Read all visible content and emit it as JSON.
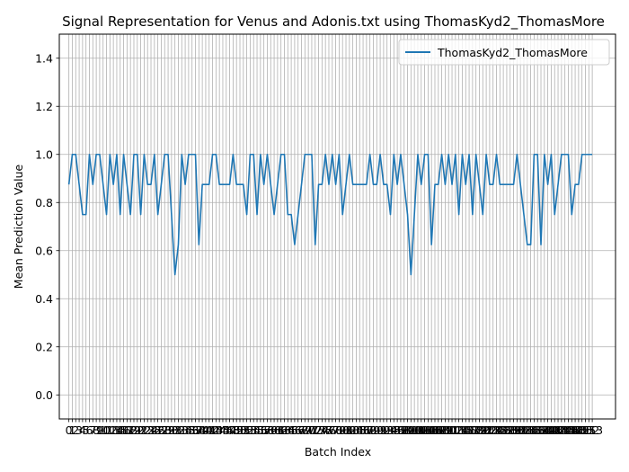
{
  "chart_data": {
    "type": "line",
    "title": "Signal Representation for Venus and Adonis.txt using ThomasKyd2_ThomasMore",
    "xlabel": "Batch Index",
    "ylabel": "Mean Prediction Value",
    "xlim": [
      -2.8,
      159.8
    ],
    "ylim": [
      -0.1,
      1.5
    ],
    "yticks": [
      0.0,
      0.2,
      0.4,
      0.6,
      0.8,
      1.0,
      1.2,
      1.4
    ],
    "ytick_labels": [
      "0.0",
      "0.2",
      "0.4",
      "0.6",
      "0.8",
      "1.0",
      "1.2",
      "1.4"
    ],
    "grid": true,
    "legend_position": "top-right",
    "series": [
      {
        "name": "ThomasKyd2_ThomasMore",
        "color": "#1f77b4",
        "values": [
          0.875,
          1.0,
          1.0,
          0.875,
          0.75,
          0.75,
          1.0,
          0.875,
          1.0,
          1.0,
          0.875,
          0.75,
          1.0,
          0.875,
          1.0,
          0.75,
          1.0,
          0.875,
          0.75,
          1.0,
          1.0,
          0.75,
          1.0,
          0.875,
          0.875,
          1.0,
          0.75,
          0.875,
          1.0,
          1.0,
          0.75,
          0.5,
          0.625,
          1.0,
          0.875,
          1.0,
          1.0,
          1.0,
          0.625,
          0.875,
          0.875,
          0.875,
          1.0,
          1.0,
          0.875,
          0.875,
          0.875,
          0.875,
          1.0,
          0.875,
          0.875,
          0.875,
          0.75,
          1.0,
          1.0,
          0.75,
          1.0,
          0.875,
          1.0,
          0.875,
          0.75,
          0.875,
          1.0,
          1.0,
          0.75,
          0.75,
          0.625,
          0.75,
          0.875,
          1.0,
          1.0,
          1.0,
          0.625,
          0.875,
          0.875,
          1.0,
          0.875,
          1.0,
          0.875,
          1.0,
          0.75,
          0.875,
          1.0,
          0.875,
          0.875,
          0.875,
          0.875,
          0.875,
          1.0,
          0.875,
          0.875,
          1.0,
          0.875,
          0.875,
          0.75,
          1.0,
          0.875,
          1.0,
          0.875,
          0.75,
          0.5,
          0.75,
          1.0,
          0.875,
          1.0,
          1.0,
          0.625,
          0.875,
          0.875,
          1.0,
          0.875,
          1.0,
          0.875,
          1.0,
          0.75,
          1.0,
          0.875,
          1.0,
          0.75,
          1.0,
          0.875,
          0.75,
          1.0,
          0.875,
          0.875,
          1.0,
          0.875,
          0.875,
          0.875,
          0.875,
          0.875,
          1.0,
          0.875,
          0.75,
          0.625,
          0.625,
          1.0,
          1.0,
          0.625,
          1.0,
          0.875,
          1.0,
          0.75,
          0.875,
          1.0,
          1.0,
          1.0,
          0.75,
          0.875,
          0.875,
          1.0,
          1.0,
          1.0,
          1.0
        ]
      }
    ]
  }
}
